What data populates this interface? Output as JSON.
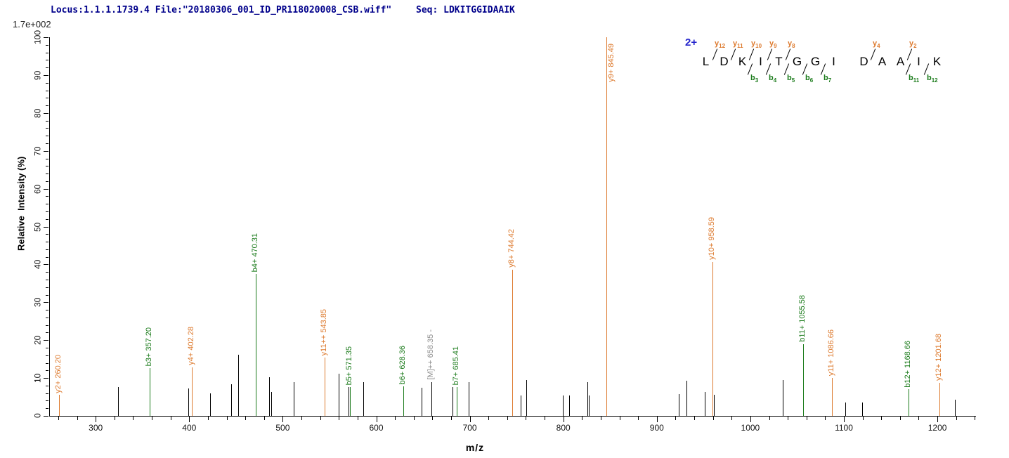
{
  "header": {
    "locus_file": "Locus:1.1.1.1739.4 File:\"20180306_001_ID_PR118020008_CSB.wiff\"",
    "seq": "Seq: LDKITGGIDAAIK"
  },
  "colors": {
    "y_ion": "#DD7A2E",
    "b_ion": "#1B7B1B",
    "unassigned": "#000000",
    "precursor_label": "#8F8F8F",
    "header_navy": "#00008B",
    "charge_blue": "#2424CC"
  },
  "peptide": {
    "charge": "2+",
    "residues": [
      "L",
      "D",
      "K",
      "I",
      "T",
      "G",
      "G",
      "I",
      "D",
      "A",
      "A",
      "I",
      "K"
    ],
    "boundaries": [
      {
        "after": 1,
        "y": "y12",
        "b": null,
        "wide": false
      },
      {
        "after": 2,
        "y": "y11",
        "b": null,
        "wide": false
      },
      {
        "after": 3,
        "y": "y10",
        "b": "b3",
        "wide": false
      },
      {
        "after": 4,
        "y": "y9",
        "b": "b4",
        "wide": false
      },
      {
        "after": 5,
        "y": "y8",
        "b": "b5",
        "wide": false
      },
      {
        "after": 6,
        "y": null,
        "b": "b6",
        "wide": false
      },
      {
        "after": 7,
        "y": null,
        "b": "b7",
        "wide": false
      },
      {
        "after": 8,
        "y": null,
        "b": null,
        "wide": true
      },
      {
        "after": 9,
        "y": "y4",
        "b": null,
        "wide": false
      },
      {
        "after": 10,
        "y": null,
        "b": null,
        "wide": false
      },
      {
        "after": 11,
        "y": "y2",
        "b": "b11",
        "wide": false
      },
      {
        "after": 12,
        "y": null,
        "b": "b12",
        "wide": false
      }
    ]
  },
  "chart_data": {
    "type": "bar",
    "variant": "ms2-fragment-stem-spectrum",
    "title": "",
    "xlabel": "m/z",
    "ylabel": "Relative  Intensity (%)",
    "max_intensity_label": "1.7e+002",
    "xlim": [
      250,
      1243
    ],
    "ylim": [
      0,
      100
    ],
    "x_major_ticks": [
      300,
      400,
      500,
      600,
      700,
      800,
      900,
      1000,
      1100,
      1200
    ],
    "x_minor_tick_step": 20,
    "y_major_ticks": [
      0,
      10,
      20,
      30,
      40,
      50,
      60,
      70,
      80,
      90,
      100
    ],
    "y_minor_tick_step": 2,
    "grid": false,
    "legend": "none",
    "peaks": [
      {
        "mz": 260.2,
        "pct": 5.5,
        "series": "y",
        "label": "y2+ 260.20"
      },
      {
        "mz": 323.4,
        "pct": 7.7,
        "series": "unassigned",
        "label": null
      },
      {
        "mz": 357.2,
        "pct": 12.6,
        "series": "b",
        "label": "b3+ 357.20"
      },
      {
        "mz": 398.3,
        "pct": 7.2,
        "series": "unassigned",
        "label": null
      },
      {
        "mz": 402.28,
        "pct": 12.8,
        "series": "y",
        "label": "y4+ 402.28"
      },
      {
        "mz": 421.6,
        "pct": 5.9,
        "series": "unassigned",
        "label": null
      },
      {
        "mz": 443.8,
        "pct": 8.3,
        "series": "unassigned",
        "label": null
      },
      {
        "mz": 451.9,
        "pct": 16.2,
        "series": "unassigned",
        "label": null
      },
      {
        "mz": 470.31,
        "pct": 37.4,
        "series": "b",
        "label": "b4+ 470.31"
      },
      {
        "mz": 485.0,
        "pct": 10.2,
        "series": "unassigned",
        "label": null
      },
      {
        "mz": 487.0,
        "pct": 6.3,
        "series": "unassigned",
        "label": null
      },
      {
        "mz": 511.0,
        "pct": 9.0,
        "series": "unassigned",
        "label": null
      },
      {
        "mz": 543.85,
        "pct": 15.4,
        "series": "y",
        "label": "y11++ 543.85"
      },
      {
        "mz": 558.8,
        "pct": 11.1,
        "series": "unassigned",
        "label": null
      },
      {
        "mz": 569.3,
        "pct": 7.6,
        "series": "unassigned",
        "label": null
      },
      {
        "mz": 571.35,
        "pct": 7.6,
        "series": "b",
        "label": "b5+ 571.35"
      },
      {
        "mz": 585.6,
        "pct": 9.0,
        "series": "unassigned",
        "label": null
      },
      {
        "mz": 628.36,
        "pct": 7.8,
        "series": "b",
        "label": "b6+ 628.36"
      },
      {
        "mz": 647.5,
        "pct": 7.5,
        "series": "unassigned",
        "label": null
      },
      {
        "mz": 658.35,
        "pct": 9.0,
        "series": "precursor",
        "label": "[M]++ 658.35 -"
      },
      {
        "mz": 681.0,
        "pct": 7.6,
        "series": "unassigned",
        "label": null
      },
      {
        "mz": 685.41,
        "pct": 7.6,
        "series": "b",
        "label": "b7+ 685.41"
      },
      {
        "mz": 698.3,
        "pct": 8.9,
        "series": "unassigned",
        "label": null
      },
      {
        "mz": 744.42,
        "pct": 38.6,
        "series": "y",
        "label": "y8+ 744.42"
      },
      {
        "mz": 753.5,
        "pct": 5.3,
        "series": "unassigned",
        "label": null
      },
      {
        "mz": 759.7,
        "pct": 9.5,
        "series": "unassigned",
        "label": null
      },
      {
        "mz": 799.0,
        "pct": 5.3,
        "series": "unassigned",
        "label": null
      },
      {
        "mz": 805.5,
        "pct": 5.4,
        "series": "unassigned",
        "label": null
      },
      {
        "mz": 825.0,
        "pct": 9.0,
        "series": "unassigned",
        "label": null
      },
      {
        "mz": 826.8,
        "pct": 5.4,
        "series": "unassigned",
        "label": null
      },
      {
        "mz": 845.49,
        "pct": 100,
        "series": "y",
        "label": "y9+ 845.49"
      },
      {
        "mz": 922.5,
        "pct": 5.8,
        "series": "unassigned",
        "label": null
      },
      {
        "mz": 930.7,
        "pct": 9.2,
        "series": "unassigned",
        "label": null
      },
      {
        "mz": 950.8,
        "pct": 6.4,
        "series": "unassigned",
        "label": null
      },
      {
        "mz": 958.59,
        "pct": 40.6,
        "series": "y",
        "label": "y10+ 958.59"
      },
      {
        "mz": 960.3,
        "pct": 5.6,
        "series": "unassigned",
        "label": null
      },
      {
        "mz": 1033.7,
        "pct": 9.4,
        "series": "unassigned",
        "label": null
      },
      {
        "mz": 1055.58,
        "pct": 18.9,
        "series": "b",
        "label": "b11+ 1055.58"
      },
      {
        "mz": 1086.66,
        "pct": 10.0,
        "series": "y",
        "label": "y11+ 1086.66"
      },
      {
        "mz": 1100.8,
        "pct": 3.6,
        "series": "unassigned",
        "label": null
      },
      {
        "mz": 1118.8,
        "pct": 3.6,
        "series": "unassigned",
        "label": null
      },
      {
        "mz": 1168.66,
        "pct": 7.0,
        "series": "b",
        "label": "b12+ 1168.66"
      },
      {
        "mz": 1201.68,
        "pct": 8.7,
        "series": "y",
        "label": "y12+ 1201.68"
      },
      {
        "mz": 1217.8,
        "pct": 4.2,
        "series": "unassigned",
        "label": null
      }
    ]
  }
}
